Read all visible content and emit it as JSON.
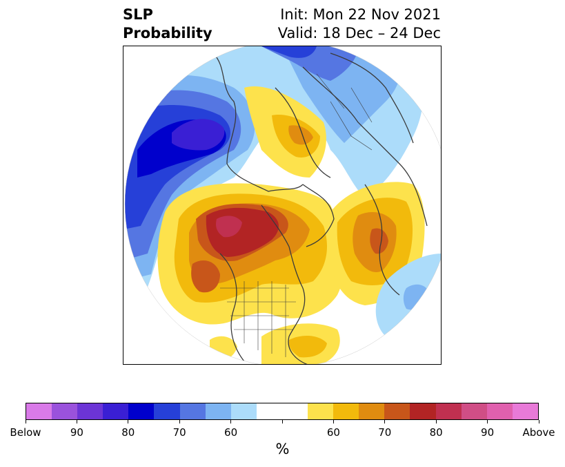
{
  "title": {
    "left_line1": "SLP",
    "left_line2": "Probability",
    "right_line1": "Init: Mon 22 Nov 2021",
    "right_line2": "Valid: 18 Dec – 24 Dec"
  },
  "colorbar": {
    "unit": "%",
    "labels": [
      "Below",
      "90",
      "80",
      "70",
      "60",
      "60",
      "70",
      "80",
      "90",
      "Above"
    ],
    "colors": [
      "#d97ae8",
      "#9a52dc",
      "#6c34d6",
      "#3a1fd4",
      "#0000cc",
      "#2640d8",
      "#5576e2",
      "#7db4f2",
      "#acdcfa",
      "#ffffff",
      "#ffffff",
      "#fde24c",
      "#f2ba0c",
      "#e08c10",
      "#c8561a",
      "#b22424",
      "#c03050",
      "#d04e86",
      "#e060ae",
      "#e87ad8"
    ]
  },
  "map": {
    "colors": {
      "blue_light": "#acdcfa",
      "blue_mid": "#7db4f2",
      "blue": "#5576e2",
      "blue_dark": "#2640d8",
      "blue_deep": "#0000cc",
      "purple": "#3a1fd4",
      "yellow": "#fde24c",
      "gold": "#f2ba0c",
      "orange": "#e08c10",
      "orange_dark": "#c8561a",
      "red": "#b22424",
      "rose": "#c03050",
      "coast": "#3a3a3a"
    }
  }
}
